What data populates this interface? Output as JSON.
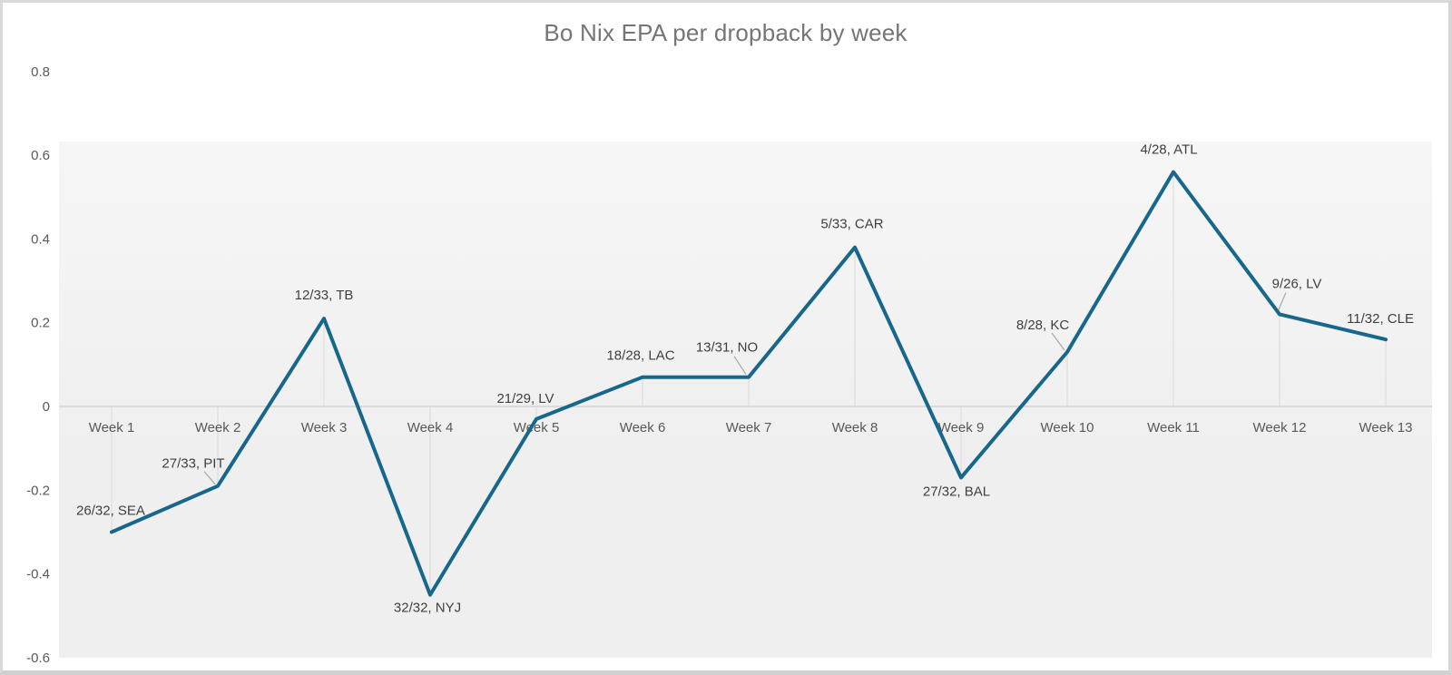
{
  "page": {
    "title": "Bo Nix EPA per dropback by week"
  },
  "chart_data": {
    "type": "line",
    "title": "Bo Nix EPA per dropback by week",
    "x_categories": [
      "Week 1",
      "Week 2",
      "Week 3",
      "Week 4",
      "Week 5",
      "Week 6",
      "Week 7",
      "Week 8",
      "Week 9",
      "Week 10",
      "Week 11",
      "Week 12",
      "Week 13"
    ],
    "series": [
      {
        "name": "EPA per dropback",
        "values": [
          -0.3,
          -0.19,
          0.21,
          -0.45,
          -0.03,
          0.07,
          0.07,
          0.38,
          -0.17,
          0.13,
          0.56,
          0.22,
          0.16
        ]
      }
    ],
    "point_labels": [
      "26/32, SEA",
      "27/33, PIT",
      "12/33, TB",
      "32/32, NYJ",
      "21/29, LV",
      "18/28, LAC",
      "13/31, NO",
      "5/33, CAR",
      "27/32, BAL",
      "8/28, KC",
      "4/28, ATL",
      "9/26, LV",
      "11/32, CLE"
    ],
    "xlabel": "",
    "ylabel": "",
    "ylim": [
      -0.6,
      0.8
    ],
    "yticks": [
      "0.8",
      "0.6",
      "0.4",
      "0.2",
      "0",
      "-0.2",
      "-0.4",
      "-0.6"
    ],
    "legend": "none",
    "gridlines": "no horizontal gridlines; thin vertical drop line from each data point to the zero axis",
    "colors": {
      "line": "#17678c",
      "plot_background_top": "#f6f6f6",
      "plot_background_bottom": "#efefef",
      "axis_line": "#d2d2d2",
      "drop_line": "#d9d9d9",
      "leader_line": "#a8a8a8",
      "title_text": "#757575",
      "axis_text": "#595959",
      "label_text": "#3f3f3f"
    }
  }
}
